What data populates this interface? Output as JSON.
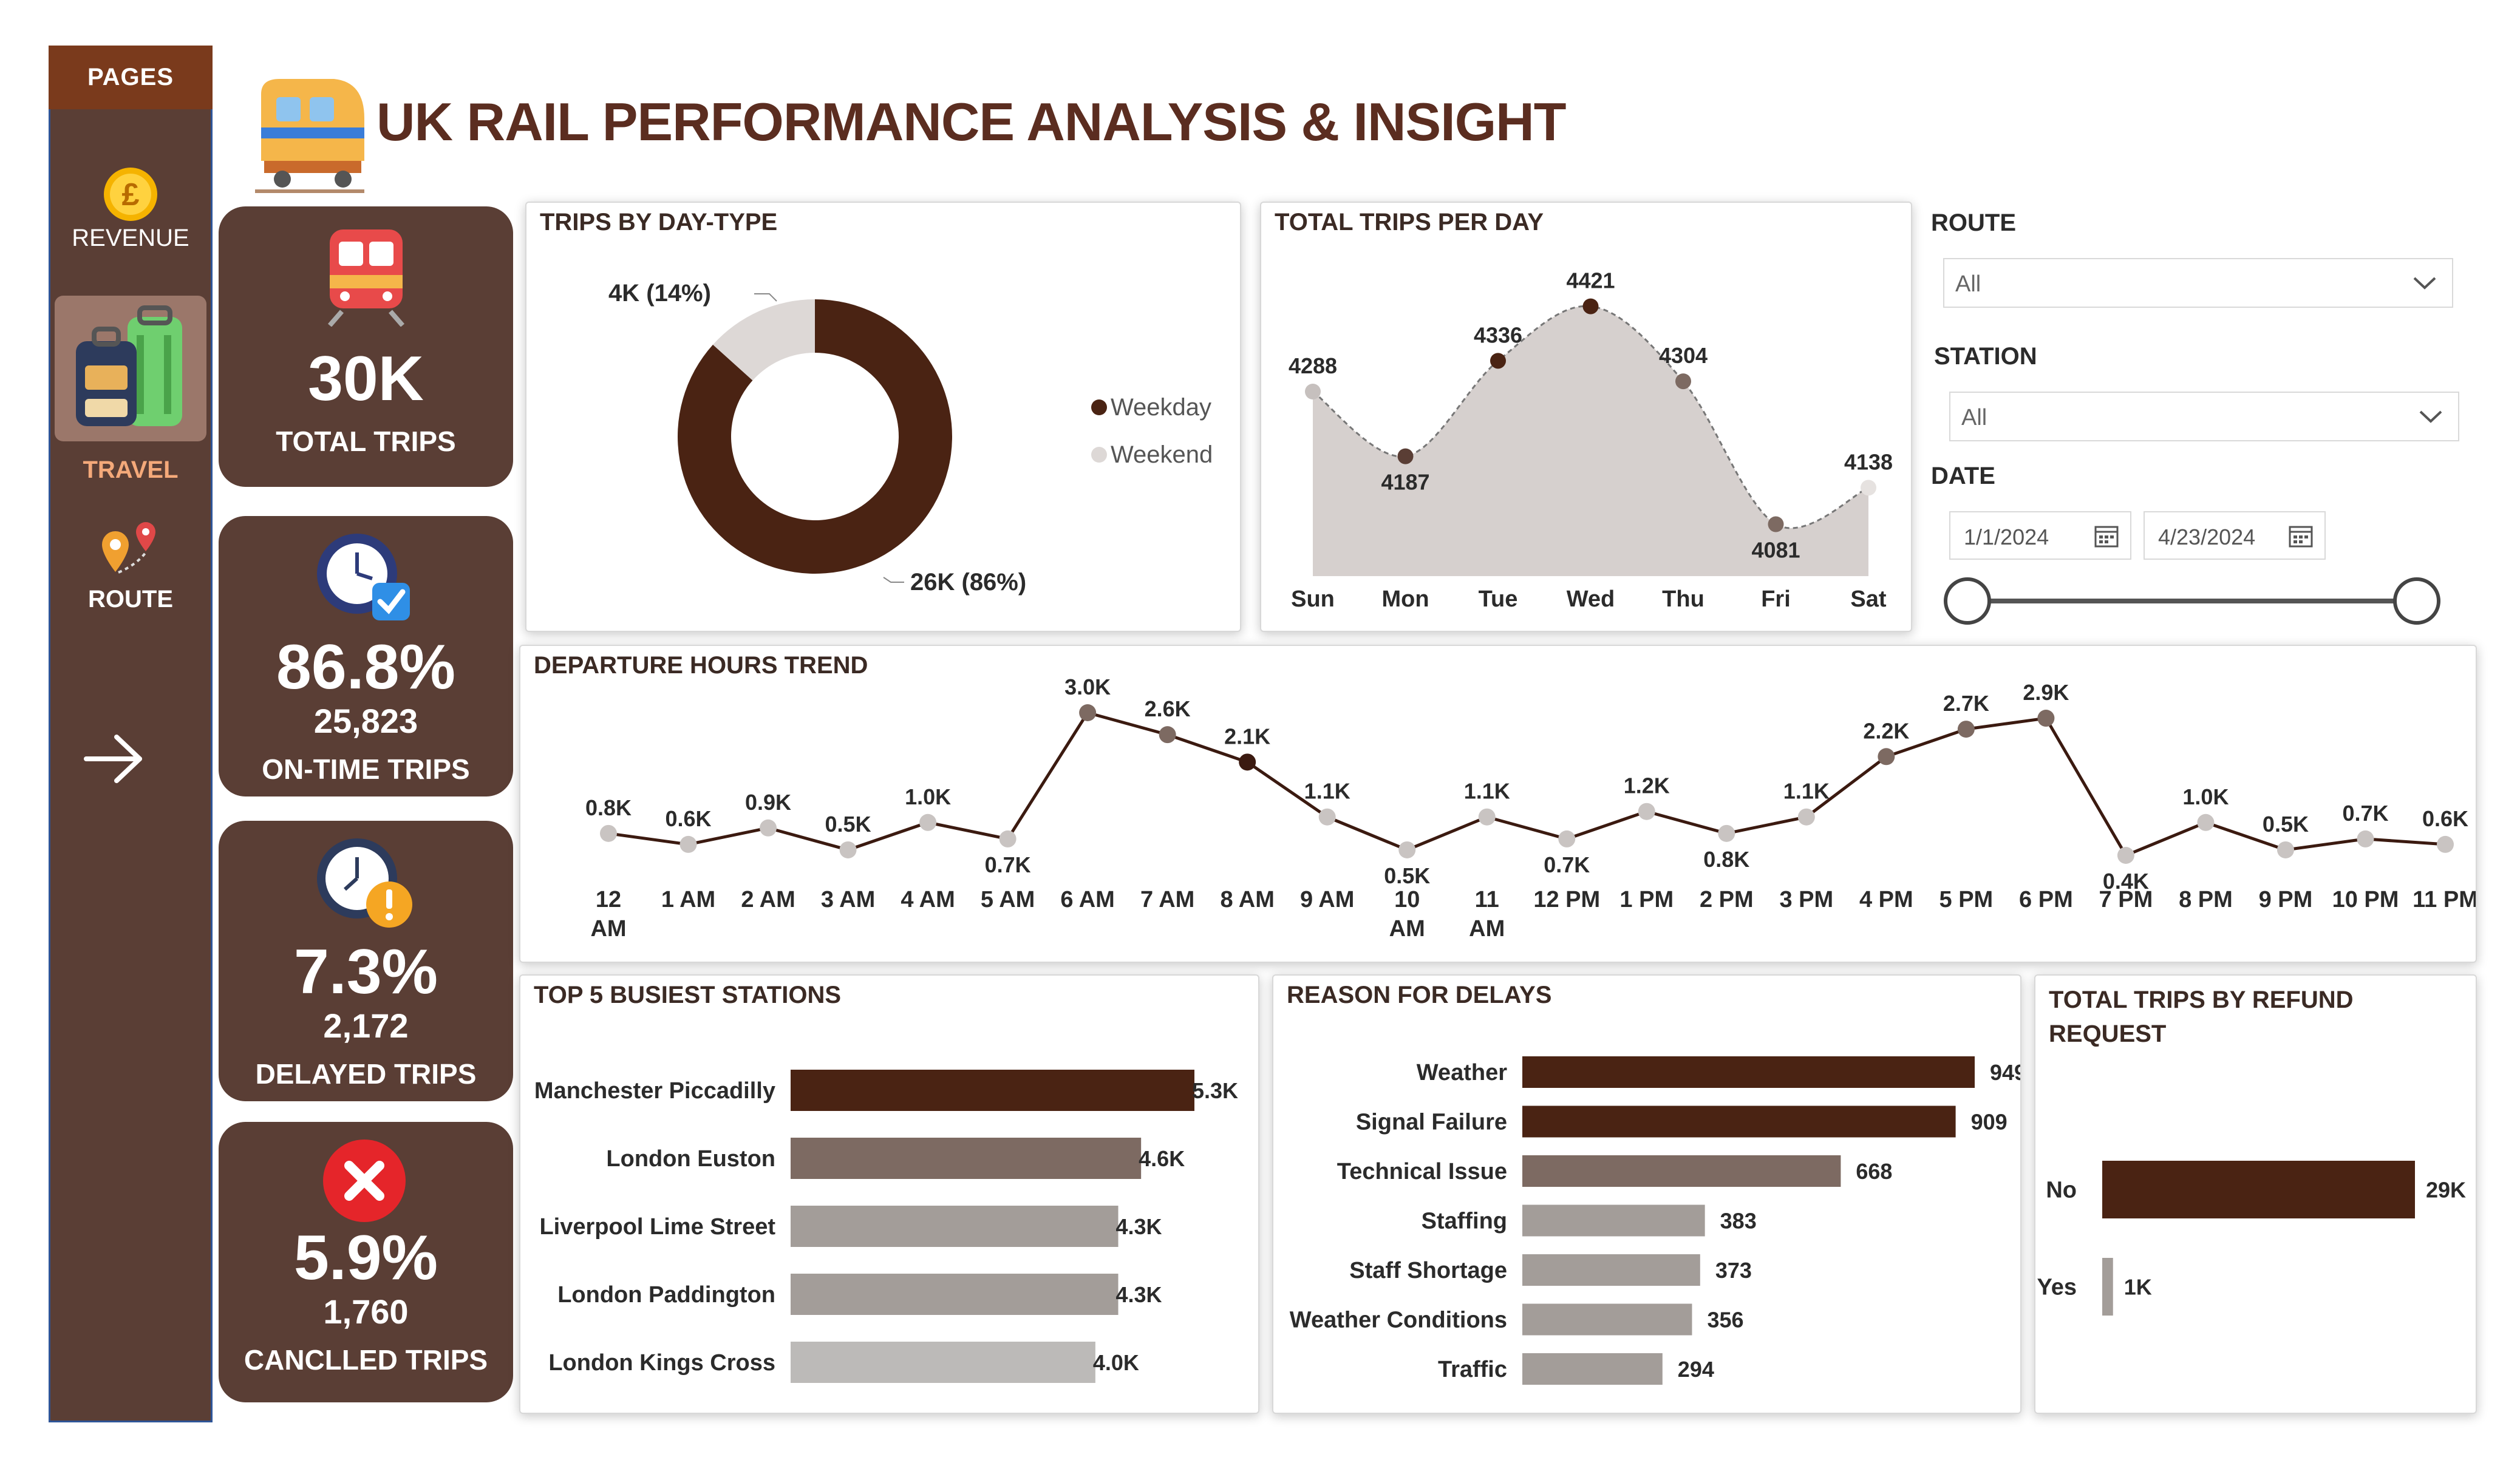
{
  "sidebar": {
    "header": "PAGES",
    "items": [
      {
        "label": "REVENUE",
        "icon": "pound-coin-icon"
      },
      {
        "label": "TRAVEL",
        "icon": "luggage-icon",
        "selected": true
      },
      {
        "label": "ROUTE",
        "icon": "map-pin-icon"
      }
    ],
    "next_icon": "arrow-right-icon"
  },
  "header": {
    "title": "UK RAIL PERFORMANCE ANALYSIS & INSIGHT",
    "icon": "train-icon"
  },
  "kpis": {
    "total_trips": {
      "value": "30K",
      "label": "TOTAL TRIPS"
    },
    "on_time": {
      "pct": "86.8%",
      "count": "25,823",
      "label": "ON-TIME TRIPS"
    },
    "delayed": {
      "pct": "7.3%",
      "count": "2,172",
      "label": "DELAYED TRIPS"
    },
    "cancelled": {
      "pct": "5.9%",
      "count": "1,760",
      "label": "CANCLLED TRIPS"
    }
  },
  "filters": {
    "route_label": "ROUTE",
    "route_value": "All",
    "station_label": "STATION",
    "station_value": "All",
    "date_label": "DATE",
    "date_start": "1/1/2024",
    "date_end": "4/23/2024"
  },
  "colors": {
    "dark_brown": "#4a2313",
    "mid_brown": "#7d6a62",
    "light_gray": "#a39d99",
    "lighter_gray": "#bcbab8",
    "area_fill": "#d6d0ce",
    "sidebar": "#5a3e35"
  },
  "chart_data": [
    {
      "type": "pie",
      "title": "TRIPS BY DAY-TYPE",
      "categories": [
        "Weekday",
        "Weekend"
      ],
      "values": [
        26000,
        4000
      ],
      "data_labels": [
        "26K (86%)",
        "4K (14%)"
      ],
      "colors": [
        "#4a2313",
        "#ddd8d6"
      ],
      "legend": "right"
    },
    {
      "type": "area",
      "title": "TOTAL TRIPS PER DAY",
      "categories": [
        "Sun",
        "Mon",
        "Tue",
        "Wed",
        "Thu",
        "Fri",
        "Sat"
      ],
      "values": [
        4288,
        4187,
        4336,
        4421,
        4304,
        4081,
        4138
      ],
      "ylim": [
        4000,
        4450
      ]
    },
    {
      "type": "line",
      "title": "DEPARTURE HOURS TREND",
      "categories": [
        "12 AM",
        "1 AM",
        "2 AM",
        "3 AM",
        "4 AM",
        "5 AM",
        "6 AM",
        "7 AM",
        "8 AM",
        "9 AM",
        "10 AM",
        "11 AM",
        "12 PM",
        "1 PM",
        "2 PM",
        "3 PM",
        "4 PM",
        "5 PM",
        "6 PM",
        "7 PM",
        "8 PM",
        "9 PM",
        "10 PM",
        "11 PM"
      ],
      "values": [
        0.8,
        0.6,
        0.9,
        0.5,
        1.0,
        0.7,
        3.0,
        2.6,
        2.1,
        1.1,
        0.5,
        1.1,
        0.7,
        1.2,
        0.8,
        1.1,
        2.2,
        2.7,
        2.9,
        0.4,
        1.0,
        0.5,
        0.7,
        0.6
      ],
      "data_labels": [
        "0.8K",
        "0.6K",
        "0.9K",
        "0.5K",
        "1.0K",
        "0.7K",
        "3.0K",
        "2.6K",
        "2.1K",
        "1.1K",
        "0.5K",
        "1.1K",
        "0.7K",
        "1.2K",
        "0.8K",
        "1.1K",
        "2.2K",
        "2.7K",
        "2.9K",
        "0.4K",
        "1.0K",
        "0.5K",
        "0.7K",
        "0.6K"
      ],
      "units": "K"
    },
    {
      "type": "bar",
      "title": "TOP 5 BUSIEST STATIONS",
      "categories": [
        "Manchester Piccadilly",
        "London Euston",
        "Liverpool Lime Street",
        "London Paddington",
        "London Kings Cross"
      ],
      "values": [
        5.3,
        4.6,
        4.3,
        4.3,
        4.0
      ],
      "data_labels": [
        "5.3K",
        "4.6K",
        "4.3K",
        "4.3K",
        "4.0K"
      ],
      "orientation": "horizontal"
    },
    {
      "type": "bar",
      "title": "REASON FOR DELAYS",
      "categories": [
        "Weather",
        "Signal Failure",
        "Technical Issue",
        "Staffing",
        "Staff Shortage",
        "Weather Conditions",
        "Traffic"
      ],
      "values": [
        949,
        909,
        668,
        383,
        373,
        356,
        294
      ],
      "data_labels": [
        "949",
        "909",
        "668",
        "383",
        "373",
        "356",
        "294"
      ],
      "orientation": "horizontal"
    },
    {
      "type": "bar",
      "title": "TOTAL TRIPS BY REFUND REQUEST",
      "categories": [
        "No",
        "Yes"
      ],
      "values": [
        29,
        1
      ],
      "data_labels": [
        "29K",
        "1K"
      ],
      "orientation": "horizontal"
    }
  ]
}
